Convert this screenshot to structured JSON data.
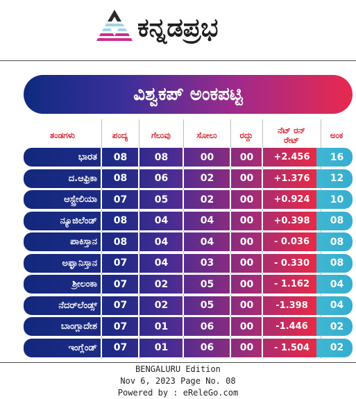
{
  "masthead": {
    "logo_text": "ಕನ್ನಡಪ್ರಭ",
    "logo_icon": "triangle-stripes-logo",
    "brand_colors": [
      "#9fd3ea",
      "#d02d8a",
      "#1f1f1f"
    ]
  },
  "table": {
    "title": "ವಿಶ್ವಕಪ್ ಅಂಕಪಟ್ಟಿ",
    "headers": [
      "ತಂಡಗಳು",
      "ಪಂದ್ಯ",
      "ಗೆಲುವು",
      "ಸೋಲು",
      "ರದ್ದು",
      "ನೆಟ್ ರನ್ ರೇಟ್",
      "ಅಂಕ"
    ],
    "header_color": "#d7262f",
    "rows": [
      {
        "team": "ಭಾರತ",
        "played": "08",
        "won": "08",
        "lost": "00",
        "nr": "00",
        "nrr": "+2.456",
        "pts": "16"
      },
      {
        "team": "ದ.ಆಫ್ರಿಕಾ",
        "played": "08",
        "won": "06",
        "lost": "02",
        "nr": "00",
        "nrr": "+1.376",
        "pts": "12"
      },
      {
        "team": "ಆಸ್ಟ್ರೇಲಿಯಾ",
        "played": "07",
        "won": "05",
        "lost": "02",
        "nr": "00",
        "nrr": "+0.924",
        "pts": "10"
      },
      {
        "team": "ನ್ಯೂಜಿಲೆಂಡ್",
        "played": "08",
        "won": "04",
        "lost": "04",
        "nr": "00",
        "nrr": "+0.398",
        "pts": "08"
      },
      {
        "team": "ಪಾಕಿಸ್ತಾನ",
        "played": "08",
        "won": "04",
        "lost": "04",
        "nr": "00",
        "nrr": "- 0.036",
        "pts": "08"
      },
      {
        "team": "ಅಫ್ಘಾನಿಸ್ತಾನ",
        "played": "07",
        "won": "04",
        "lost": "03",
        "nr": "00",
        "nrr": "- 0.330",
        "pts": "08"
      },
      {
        "team": "ಶ್ರೀಲಂಕಾ",
        "played": "07",
        "won": "02",
        "lost": "05",
        "nr": "00",
        "nrr": "- 1.162",
        "pts": "04"
      },
      {
        "team": "ನೆದರ್‌ಲೆಂಡ್ಸ್",
        "played": "07",
        "won": "02",
        "lost": "05",
        "nr": "00",
        "nrr": "-1.398",
        "pts": "04"
      },
      {
        "team": "ಬಾಂಗ್ಲಾದೇಶ",
        "played": "07",
        "won": "01",
        "lost": "06",
        "nr": "00",
        "nrr": "-1.446",
        "pts": "02"
      },
      {
        "team": "ಇಂಗ್ಲೆಂಡ್",
        "played": "07",
        "won": "01",
        "lost": "06",
        "nr": "00",
        "nrr": "- 1.504",
        "pts": "02"
      }
    ]
  },
  "footer": {
    "edition": "BENGALURU Edition",
    "date_page": "Nov 6, 2023 Page No. 08",
    "powered_by": "Powered by : eReleGo.com"
  }
}
